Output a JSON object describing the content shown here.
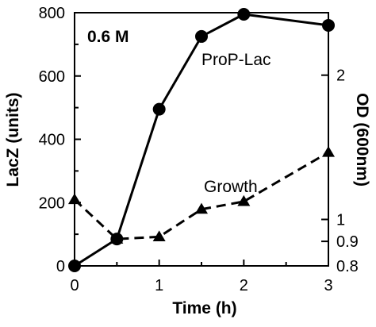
{
  "chart_data": {
    "type": "line",
    "xlabel": "Time (h)",
    "ylabel": "LacZ (units)",
    "y2label": "OD (600nm)",
    "xlim": [
      0,
      3
    ],
    "ylim": [
      0,
      800
    ],
    "y2_scale": "log",
    "y2lim": [
      0.8,
      2.7
    ],
    "x_ticks": [
      "0",
      "1",
      "2",
      "3"
    ],
    "y_ticks": [
      "0",
      "200",
      "400",
      "600",
      "800"
    ],
    "y2_ticks": [
      "0.8",
      "0.9",
      "1",
      "2"
    ],
    "annotations": {
      "condition": "0.6 M",
      "series1_label": "ProP-Lac",
      "series2_label": "Growth"
    },
    "series": [
      {
        "name": "ProP-Lac",
        "axis": "left",
        "marker": "circle",
        "line": "solid",
        "x": [
          0,
          0.5,
          1,
          1.5,
          2,
          3
        ],
        "y": [
          0,
          85,
          495,
          725,
          795,
          760
        ]
      },
      {
        "name": "Growth",
        "axis": "right",
        "marker": "triangle",
        "line": "dashed",
        "x": [
          0,
          0.5,
          1,
          1.5,
          2,
          3
        ],
        "y": [
          1.1,
          0.91,
          0.92,
          1.05,
          1.09,
          1.38
        ]
      }
    ]
  }
}
